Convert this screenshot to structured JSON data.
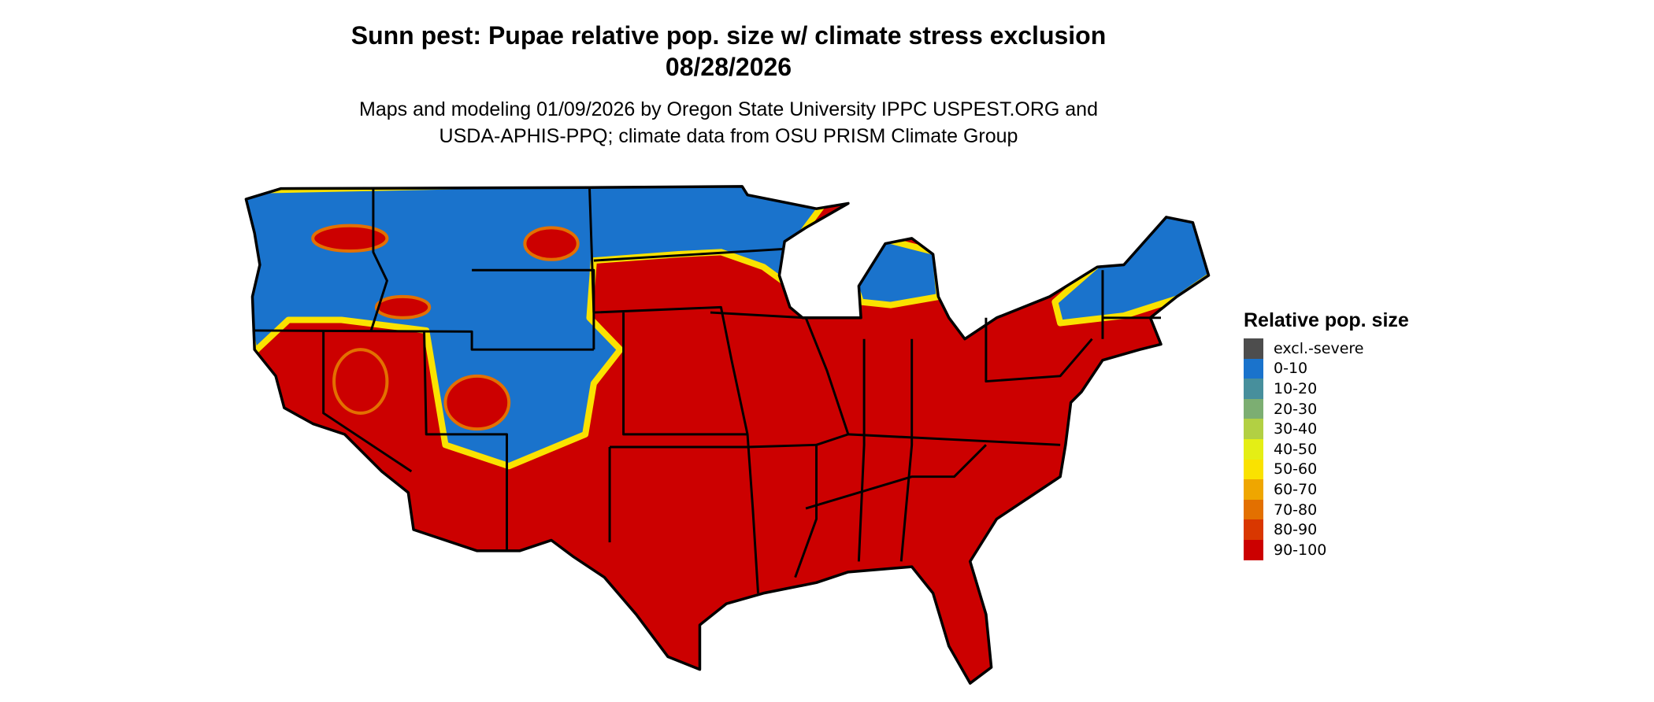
{
  "title": {
    "line1": "Sunn pest: Pupae relative pop. size w/ climate stress exclusion",
    "line2": "08/28/2026"
  },
  "subtitle": {
    "line1": "Maps and modeling 01/09/2026 by Oregon State University IPPC USPEST.ORG and",
    "line2": "USDA-APHIS-PPQ; climate data from OSU PRISM Climate Group"
  },
  "legend": {
    "title": "Relative pop. size",
    "items": [
      {
        "label": "excl.-severe",
        "color": "#4d4d4d"
      },
      {
        "label": "0-10",
        "color": "#1a73cc"
      },
      {
        "label": "10-20",
        "color": "#478f9c"
      },
      {
        "label": "20-30",
        "color": "#7cae72"
      },
      {
        "label": "30-40",
        "color": "#b2d043"
      },
      {
        "label": "40-50",
        "color": "#e4ee15"
      },
      {
        "label": "50-60",
        "color": "#fae200"
      },
      {
        "label": "60-70",
        "color": "#efa600"
      },
      {
        "label": "70-80",
        "color": "#e37000"
      },
      {
        "label": "80-90",
        "color": "#d93700"
      },
      {
        "label": "90-100",
        "color": "#cc0000"
      }
    ]
  },
  "map": {
    "region": "Contiguous United States",
    "dominant_class": "90-100",
    "northern_class": "0-10"
  }
}
